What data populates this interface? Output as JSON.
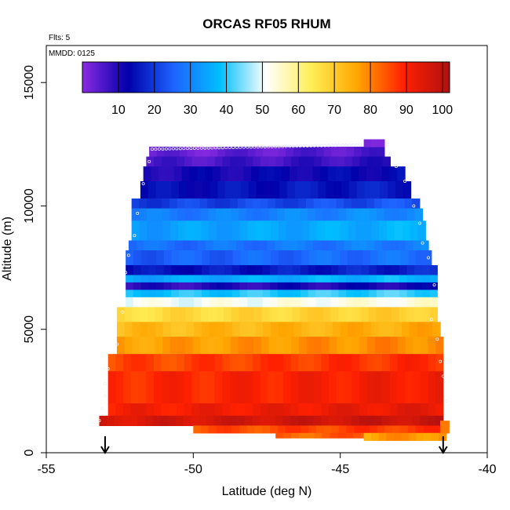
{
  "chart_data": {
    "type": "heatmap",
    "title": "ORCAS RF05 RHUM",
    "annotations": {
      "flights": "Flts: 5",
      "date": "MMDD: 0125"
    },
    "xlabel": "Latitude (deg N)",
    "ylabel": "Altitude (m)",
    "xlim": [
      -55,
      -40
    ],
    "ylim": [
      0,
      16500
    ],
    "x_ticks": [
      -55,
      -50,
      -45,
      -40
    ],
    "x_tick_labels": [
      "-55",
      "-50",
      "-45",
      "-40"
    ],
    "y_ticks": [
      0,
      5000,
      10000,
      15000
    ],
    "y_tick_labels": [
      "0",
      "5000",
      "10000",
      "15000"
    ],
    "colorbar": {
      "min": 0,
      "max": 102,
      "ticks": [
        10,
        20,
        30,
        40,
        50,
        60,
        70,
        80,
        90,
        100
      ],
      "tick_labels": [
        "10",
        "20",
        "30",
        "40",
        "50",
        "60",
        "70",
        "80",
        "90",
        "100"
      ],
      "colors": [
        "#8a2be2",
        "#0000aa",
        "#1e64ff",
        "#00bfff",
        "#ffffff",
        "#ffee55",
        "#ffa500",
        "#ff2000",
        "#b01010"
      ]
    },
    "markers": [
      {
        "type": "arrow-down",
        "x": -53.0
      },
      {
        "type": "arrow-down",
        "x": -41.5
      }
    ],
    "profile_rows": [
      {
        "y0": 12000,
        "y1": 12400,
        "x0": -51.5,
        "x1": -43.5,
        "value": 4
      },
      {
        "y0": 12400,
        "y1": 12700,
        "x0": -44.2,
        "x1": -43.5,
        "value": 3
      },
      {
        "y0": 11600,
        "y1": 12000,
        "x0": -51.6,
        "x1": -43.3,
        "value": 7
      },
      {
        "y0": 11000,
        "y1": 11600,
        "x0": -51.7,
        "x1": -42.8,
        "value": 12
      },
      {
        "y0": 10300,
        "y1": 11000,
        "x0": -51.8,
        "x1": -42.6,
        "value": 15
      },
      {
        "y0": 9900,
        "y1": 10300,
        "x0": -52.1,
        "x1": -42.3,
        "value": 22
      },
      {
        "y0": 9400,
        "y1": 9900,
        "x0": -52.1,
        "x1": -42.2,
        "value": 30
      },
      {
        "y0": 8600,
        "y1": 9400,
        "x0": -52.1,
        "x1": -42.1,
        "value": 35
      },
      {
        "y0": 8200,
        "y1": 8600,
        "x0": -52.2,
        "x1": -42.0,
        "value": 28
      },
      {
        "y0": 7600,
        "y1": 8200,
        "x0": -52.3,
        "x1": -41.9,
        "value": 26
      },
      {
        "y0": 7200,
        "y1": 7600,
        "x0": -52.3,
        "x1": -41.7,
        "value": 16
      },
      {
        "y0": 6900,
        "y1": 7200,
        "x0": -52.3,
        "x1": -41.7,
        "value": 36
      },
      {
        "y0": 6600,
        "y1": 6900,
        "x0": -52.3,
        "x1": -41.7,
        "value": 10
      },
      {
        "y0": 6300,
        "y1": 6600,
        "x0": -52.3,
        "x1": -41.7,
        "value": 40
      },
      {
        "y0": 5900,
        "y1": 6300,
        "x0": -52.3,
        "x1": -41.7,
        "value": 52
      },
      {
        "y0": 5300,
        "y1": 5900,
        "x0": -52.6,
        "x1": -41.7,
        "value": 68
      },
      {
        "y0": 4700,
        "y1": 5300,
        "x0": -52.6,
        "x1": -41.6,
        "value": 74
      },
      {
        "y0": 4000,
        "y1": 4700,
        "x0": -52.6,
        "x1": -41.5,
        "value": 78
      },
      {
        "y0": 3300,
        "y1": 4000,
        "x0": -52.9,
        "x1": -41.5,
        "value": 87
      },
      {
        "y0": 2000,
        "y1": 3300,
        "x0": -52.9,
        "x1": -41.5,
        "value": 90
      },
      {
        "y0": 1300,
        "y1": 2000,
        "x0": -52.9,
        "x1": -41.5,
        "value": 92
      },
      {
        "y0": 1100,
        "y1": 1500,
        "x0": -53.2,
        "x1": -41.5,
        "value": 97
      },
      {
        "y0": 800,
        "y1": 1100,
        "x0": -50.0,
        "x1": -41.4,
        "value": 86
      },
      {
        "y0": 600,
        "y1": 800,
        "x0": -47.2,
        "x1": -41.4,
        "value": 84
      },
      {
        "y0": 500,
        "y1": 800,
        "x0": -44.2,
        "x1": -41.4,
        "value": 78
      },
      {
        "y0": 800,
        "y1": 1300,
        "x0": -41.6,
        "x1": -41.3,
        "value": 80
      }
    ]
  }
}
